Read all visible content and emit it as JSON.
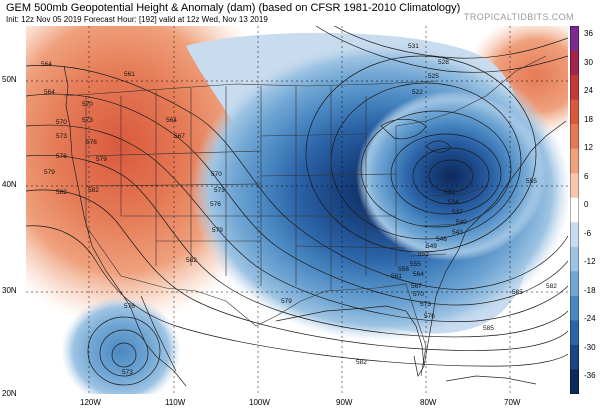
{
  "header": {
    "title": "GEM 500mb Geopotential Height & Anomaly (dam) (based on CFSR 1981-2010 Climatology)",
    "subtitle": "Init: 12z Nov 05 2019   Forecast Hour: [192]   valid at 12z Wed, Nov 13 2019",
    "brand": "TROPICALTIDBITS.COM"
  },
  "lat_labels": [
    "50N",
    "40N",
    "30N",
    "20N"
  ],
  "lon_labels": [
    "120W",
    "110W",
    "100W",
    "90W",
    "80W",
    "70W"
  ],
  "colorbar": {
    "ticks": [
      "36",
      "30",
      "24",
      "18",
      "12",
      "6",
      "0",
      "-6",
      "-12",
      "-18",
      "-24",
      "-30",
      "-36"
    ],
    "colors": [
      "#7b2a8f",
      "#a2264a",
      "#c23a3a",
      "#d9593c",
      "#e57a56",
      "#efa07c",
      "#f6c7ae",
      "#ffffff",
      "#c9dcef",
      "#9ec4e3",
      "#72a7d4",
      "#4a88c2",
      "#2c64a8",
      "#1a4685",
      "#0d2a5c"
    ]
  },
  "contour_labels": [
    "564",
    "561",
    "570",
    "573",
    "576",
    "579",
    "582",
    "564",
    "567",
    "570",
    "573",
    "576",
    "579",
    "582",
    "531",
    "528",
    "525",
    "522",
    "531",
    "534",
    "537",
    "540",
    "543",
    "546",
    "549",
    "552",
    "555",
    "558",
    "561",
    "564",
    "567",
    "570",
    "573",
    "576",
    "579",
    "582",
    "585",
    "576",
    "573",
    "582",
    "585",
    "564",
    "570",
    "573",
    "576",
    "579",
    "582",
    "555"
  ]
}
